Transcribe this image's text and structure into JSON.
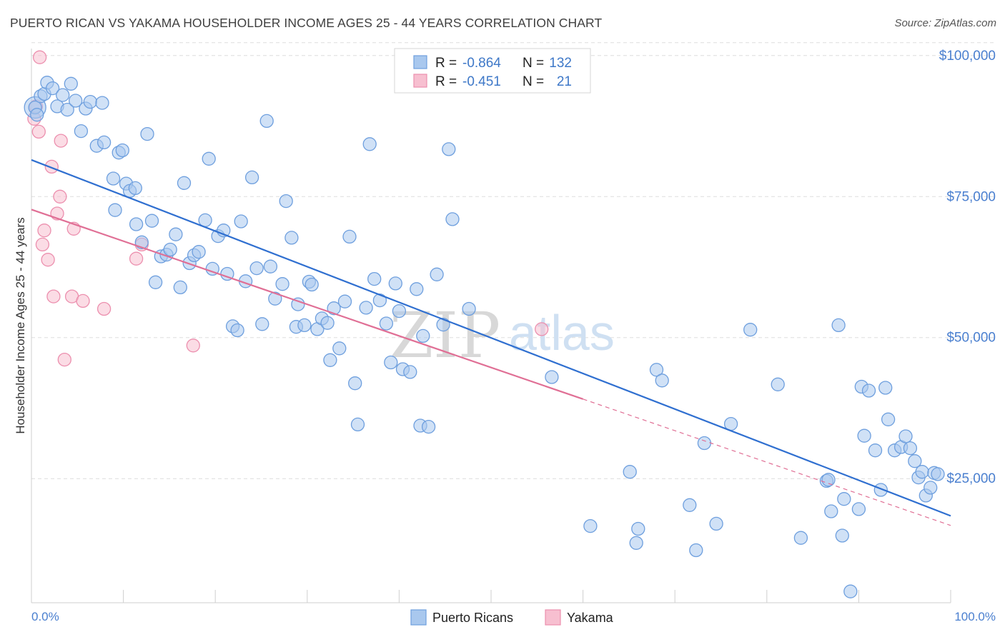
{
  "title": "PUERTO RICAN VS YAKAMA HOUSEHOLDER INCOME AGES 25 - 44 YEARS CORRELATION CHART",
  "source": "Source: ZipAtlas.com",
  "watermark": {
    "part1": "ZIP",
    "part2": "atlas"
  },
  "colors": {
    "blue_fill": "#a9c8ee",
    "blue_stroke": "#6e9fde",
    "blue_line": "#2f6fd0",
    "pink_fill": "#f7bfd0",
    "pink_stroke": "#ec8fae",
    "pink_line": "#e06f95",
    "grid": "#dddddd",
    "axis_text": "#4a7fcf"
  },
  "legend": {
    "rows": [
      {
        "r_label": "R =",
        "r_value": "-0.864",
        "n_label": "N =",
        "n_value": "132"
      },
      {
        "r_label": "R =",
        "r_value": "-0.451",
        "n_label": "N =",
        "n_value": "21"
      }
    ]
  },
  "chart_data": {
    "type": "scatter",
    "title": "PUERTO RICAN VS YAKAMA HOUSEHOLDER INCOME AGES 25 - 44 YEARS CORRELATION CHART",
    "xlabel": "",
    "ylabel": "Householder Income Ages 25 - 44 years",
    "xlim": [
      0,
      100
    ],
    "ylim": [
      3000,
      102000
    ],
    "x_tick_labels": [
      "0.0%",
      "100.0%"
    ],
    "y_ticks": [
      25000,
      50000,
      75000,
      100000
    ],
    "y_tick_labels": [
      "$25,000",
      "$50,000",
      "$75,000",
      "$100,000"
    ],
    "grid": true,
    "legend_position": "bottom",
    "series": [
      {
        "name": "Puerto Ricans",
        "points": [
          [
            0.4,
            90.8
          ],
          [
            0.6,
            89.5
          ],
          [
            1.0,
            92.8
          ],
          [
            1.4,
            93.2
          ],
          [
            1.7,
            95.2
          ],
          [
            2.3,
            94.2
          ],
          [
            2.8,
            91.0
          ],
          [
            3.4,
            93.0
          ],
          [
            3.9,
            90.4
          ],
          [
            4.3,
            95.0
          ],
          [
            4.8,
            92.0
          ],
          [
            5.4,
            86.6
          ],
          [
            5.9,
            90.6
          ],
          [
            6.4,
            91.8
          ],
          [
            7.1,
            84.0
          ],
          [
            7.7,
            91.6
          ],
          [
            7.9,
            84.6
          ],
          [
            8.9,
            78.2
          ],
          [
            9.1,
            72.6
          ],
          [
            9.5,
            82.8
          ],
          [
            9.9,
            83.2
          ],
          [
            10.3,
            77.3
          ],
          [
            10.7,
            76.0
          ],
          [
            11.3,
            76.5
          ],
          [
            11.4,
            70.1
          ],
          [
            12.0,
            66.9
          ],
          [
            12.6,
            86.1
          ],
          [
            13.1,
            70.7
          ],
          [
            13.5,
            59.8
          ],
          [
            14.1,
            64.4
          ],
          [
            14.7,
            64.7
          ],
          [
            15.1,
            65.6
          ],
          [
            15.7,
            68.3
          ],
          [
            16.2,
            58.9
          ],
          [
            16.6,
            77.4
          ],
          [
            17.2,
            63.2
          ],
          [
            17.7,
            64.6
          ],
          [
            18.2,
            65.2
          ],
          [
            18.9,
            70.8
          ],
          [
            19.3,
            81.7
          ],
          [
            19.7,
            62.2
          ],
          [
            20.3,
            68.0
          ],
          [
            20.9,
            69.0
          ],
          [
            21.3,
            61.3
          ],
          [
            21.9,
            52.0
          ],
          [
            22.4,
            51.3
          ],
          [
            22.8,
            70.6
          ],
          [
            23.3,
            60.0
          ],
          [
            24.0,
            78.4
          ],
          [
            24.5,
            62.3
          ],
          [
            25.1,
            52.4
          ],
          [
            25.6,
            88.4
          ],
          [
            26.0,
            62.6
          ],
          [
            26.5,
            56.9
          ],
          [
            27.3,
            59.5
          ],
          [
            27.7,
            74.2
          ],
          [
            28.3,
            67.7
          ],
          [
            28.8,
            51.9
          ],
          [
            29.0,
            55.9
          ],
          [
            29.7,
            52.2
          ],
          [
            30.2,
            59.9
          ],
          [
            30.5,
            59.4
          ],
          [
            31.1,
            51.5
          ],
          [
            31.6,
            53.4
          ],
          [
            32.2,
            52.6
          ],
          [
            32.5,
            46.0
          ],
          [
            32.9,
            55.2
          ],
          [
            33.5,
            48.1
          ],
          [
            34.1,
            56.4
          ],
          [
            34.6,
            67.9
          ],
          [
            35.2,
            41.9
          ],
          [
            35.5,
            34.6
          ],
          [
            36.4,
            55.3
          ],
          [
            36.8,
            84.3
          ],
          [
            37.3,
            60.4
          ],
          [
            37.9,
            56.6
          ],
          [
            38.6,
            52.5
          ],
          [
            39.1,
            45.6
          ],
          [
            39.6,
            59.6
          ],
          [
            40.0,
            54.7
          ],
          [
            40.4,
            44.4
          ],
          [
            41.2,
            43.9
          ],
          [
            41.9,
            58.6
          ],
          [
            42.3,
            34.4
          ],
          [
            42.6,
            50.3
          ],
          [
            43.2,
            34.2
          ],
          [
            44.1,
            61.2
          ],
          [
            44.8,
            52.3
          ],
          [
            45.4,
            83.4
          ],
          [
            45.8,
            71.0
          ],
          [
            47.6,
            55.1
          ],
          [
            56.6,
            43.0
          ],
          [
            60.8,
            16.6
          ],
          [
            65.1,
            26.2
          ],
          [
            66.0,
            16.1
          ],
          [
            65.8,
            13.6
          ],
          [
            68.0,
            44.3
          ],
          [
            68.6,
            42.4
          ],
          [
            71.6,
            20.3
          ],
          [
            72.3,
            12.3
          ],
          [
            73.2,
            31.3
          ],
          [
            74.5,
            17.0
          ],
          [
            76.1,
            34.7
          ],
          [
            78.2,
            51.4
          ],
          [
            81.2,
            41.7
          ],
          [
            83.7,
            14.5
          ],
          [
            86.5,
            24.6
          ],
          [
            86.7,
            24.8
          ],
          [
            87.0,
            19.2
          ],
          [
            87.8,
            52.2
          ],
          [
            88.2,
            14.9
          ],
          [
            88.4,
            21.4
          ],
          [
            89.1,
            5.0
          ],
          [
            90.0,
            19.6
          ],
          [
            90.3,
            41.3
          ],
          [
            90.6,
            32.6
          ],
          [
            91.1,
            40.6
          ],
          [
            91.8,
            30.0
          ],
          [
            92.4,
            23.0
          ],
          [
            92.9,
            41.1
          ],
          [
            93.2,
            35.5
          ],
          [
            93.9,
            30.0
          ],
          [
            94.6,
            30.6
          ],
          [
            95.1,
            32.5
          ],
          [
            95.6,
            30.4
          ],
          [
            96.1,
            28.1
          ],
          [
            96.5,
            25.2
          ],
          [
            96.9,
            26.2
          ],
          [
            97.3,
            22.0
          ],
          [
            97.8,
            23.4
          ],
          [
            98.2,
            26.0
          ],
          [
            98.6,
            25.8
          ]
        ],
        "trend": {
          "x": [
            0,
            100
          ],
          "y": [
            81.5,
            18.4
          ]
        }
      },
      {
        "name": "Yakama",
        "points": [
          [
            0.3,
            88.8
          ],
          [
            0.5,
            91.0
          ],
          [
            0.9,
            99.7
          ],
          [
            0.8,
            86.5
          ],
          [
            1.4,
            69.0
          ],
          [
            1.2,
            66.5
          ],
          [
            1.8,
            63.8
          ],
          [
            2.2,
            80.3
          ],
          [
            2.4,
            57.3
          ],
          [
            2.8,
            72.0
          ],
          [
            3.1,
            75.0
          ],
          [
            3.2,
            84.9
          ],
          [
            3.6,
            46.1
          ],
          [
            4.4,
            57.3
          ],
          [
            4.6,
            69.3
          ],
          [
            5.6,
            56.5
          ],
          [
            7.9,
            55.1
          ],
          [
            11.4,
            64.0
          ],
          [
            12.0,
            66.5
          ],
          [
            17.6,
            48.6
          ],
          [
            55.5,
            51.5
          ]
        ],
        "trend": {
          "x": [
            0,
            60
          ],
          "y": [
            72.7,
            39.1
          ]
        },
        "trend_extension": {
          "x": [
            60,
            100
          ],
          "y": [
            39.1,
            16.7
          ]
        }
      }
    ]
  },
  "bottom_legend": [
    {
      "label": "Puerto Ricans"
    },
    {
      "label": "Yakama"
    }
  ]
}
